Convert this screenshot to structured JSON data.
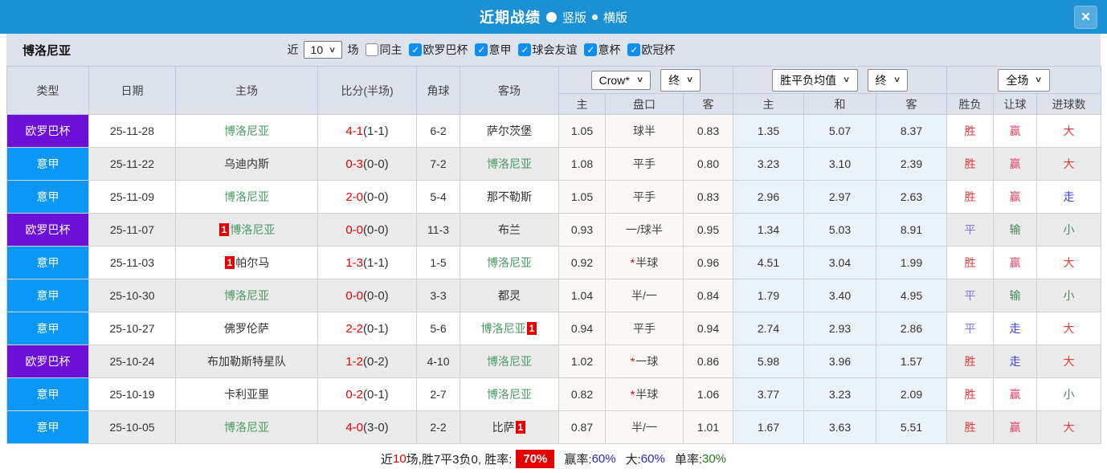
{
  "titlebar": {
    "title": "近期战绩",
    "vertical_label": "竖版",
    "horizontal_label": "横版",
    "close_glyph": "×"
  },
  "filterbar": {
    "team": "博洛尼亚",
    "recent_label": "近",
    "recent_value": "10",
    "matches_label": "场",
    "checkboxes": [
      {
        "label": "同主",
        "checked": false
      },
      {
        "label": "欧罗巴杯",
        "checked": true
      },
      {
        "label": "意甲",
        "checked": true
      },
      {
        "label": "球会友谊",
        "checked": true
      },
      {
        "label": "意杯",
        "checked": true
      },
      {
        "label": "欧冠杯",
        "checked": true
      }
    ]
  },
  "table": {
    "headers": {
      "type": "类型",
      "date": "日期",
      "home": "主场",
      "score": "比分(半场)",
      "corner": "角球",
      "away": "客场"
    },
    "dropdowns": {
      "odds_company": "Crow*",
      "odds_time": "终",
      "avg_type": "胜平负均值",
      "avg_time": "终",
      "scope": "全场"
    },
    "subheaders": [
      "主",
      "盘口",
      "客",
      "主",
      "和",
      "客",
      "胜负",
      "让球",
      "进球数"
    ],
    "rows": [
      {
        "league": "欧罗巴杯",
        "league_color": "purple",
        "date": "25-11-28",
        "home": {
          "name": "博洛尼亚",
          "green": true,
          "badge": ""
        },
        "score": "4-1",
        "half": "(1-1)",
        "corner": "6-2",
        "away": {
          "name": "萨尔茨堡",
          "green": false,
          "badge": ""
        },
        "odds": {
          "home": "1.05",
          "star": false,
          "handicap": "球半",
          "away": "0.83"
        },
        "avg": {
          "home": "1.35",
          "draw": "5.07",
          "away": "8.37"
        },
        "results": [
          {
            "t": "胜",
            "c": "red"
          },
          {
            "t": "赢",
            "c": "pink"
          },
          {
            "t": "大",
            "c": "red"
          }
        ]
      },
      {
        "league": "意甲",
        "league_color": "blue",
        "date": "25-11-22",
        "home": {
          "name": "乌迪内斯",
          "green": false,
          "badge": ""
        },
        "score": "0-3",
        "half": "(0-0)",
        "corner": "7-2",
        "away": {
          "name": "博洛尼亚",
          "green": true,
          "badge": ""
        },
        "odds": {
          "home": "1.08",
          "star": false,
          "handicap": "平手",
          "away": "0.80"
        },
        "avg": {
          "home": "3.23",
          "draw": "3.10",
          "away": "2.39"
        },
        "results": [
          {
            "t": "胜",
            "c": "red"
          },
          {
            "t": "赢",
            "c": "pink"
          },
          {
            "t": "大",
            "c": "red"
          }
        ]
      },
      {
        "league": "意甲",
        "league_color": "blue",
        "date": "25-11-09",
        "home": {
          "name": "博洛尼亚",
          "green": true,
          "badge": ""
        },
        "score": "2-0",
        "half": "(0-0)",
        "corner": "5-4",
        "away": {
          "name": "那不勒斯",
          "green": false,
          "badge": ""
        },
        "odds": {
          "home": "1.05",
          "star": false,
          "handicap": "平手",
          "away": "0.83"
        },
        "avg": {
          "home": "2.96",
          "draw": "2.97",
          "away": "2.63"
        },
        "results": [
          {
            "t": "胜",
            "c": "red"
          },
          {
            "t": "赢",
            "c": "pink"
          },
          {
            "t": "走",
            "c": "blue"
          }
        ]
      },
      {
        "league": "欧罗巴杯",
        "league_color": "purple",
        "date": "25-11-07",
        "home": {
          "name": "博洛尼亚",
          "green": true,
          "badge": "1"
        },
        "score": "0-0",
        "half": "(0-0)",
        "corner": "11-3",
        "away": {
          "name": "布兰",
          "green": false,
          "badge": ""
        },
        "odds": {
          "home": "0.93",
          "star": false,
          "handicap": "一/球半",
          "away": "0.95"
        },
        "avg": {
          "home": "1.34",
          "draw": "5.03",
          "away": "8.91"
        },
        "results": [
          {
            "t": "平",
            "c": "lav"
          },
          {
            "t": "输",
            "c": "green"
          },
          {
            "t": "小",
            "c": "green"
          }
        ]
      },
      {
        "league": "意甲",
        "league_color": "blue",
        "date": "25-11-03",
        "home": {
          "name": "帕尔马",
          "green": false,
          "badge": "1"
        },
        "score": "1-3",
        "half": "(1-1)",
        "corner": "1-5",
        "away": {
          "name": "博洛尼亚",
          "green": true,
          "badge": ""
        },
        "odds": {
          "home": "0.92",
          "star": true,
          "handicap": "半球",
          "away": "0.96"
        },
        "avg": {
          "home": "4.51",
          "draw": "3.04",
          "away": "1.99"
        },
        "results": [
          {
            "t": "胜",
            "c": "red"
          },
          {
            "t": "赢",
            "c": "pink"
          },
          {
            "t": "大",
            "c": "red"
          }
        ]
      },
      {
        "league": "意甲",
        "league_color": "blue",
        "date": "25-10-30",
        "home": {
          "name": "博洛尼亚",
          "green": true,
          "badge": ""
        },
        "score": "0-0",
        "half": "(0-0)",
        "corner": "3-3",
        "away": {
          "name": "都灵",
          "green": false,
          "badge": ""
        },
        "odds": {
          "home": "1.04",
          "star": false,
          "handicap": "半/一",
          "away": "0.84"
        },
        "avg": {
          "home": "1.79",
          "draw": "3.40",
          "away": "4.95"
        },
        "results": [
          {
            "t": "平",
            "c": "lav"
          },
          {
            "t": "输",
            "c": "green"
          },
          {
            "t": "小",
            "c": "green"
          }
        ]
      },
      {
        "league": "意甲",
        "league_color": "blue",
        "date": "25-10-27",
        "home": {
          "name": "佛罗伦萨",
          "green": false,
          "badge": ""
        },
        "score": "2-2",
        "half": "(0-1)",
        "corner": "5-6",
        "away": {
          "name": "博洛尼亚",
          "green": true,
          "badge": "1"
        },
        "odds": {
          "home": "0.94",
          "star": false,
          "handicap": "平手",
          "away": "0.94"
        },
        "avg": {
          "home": "2.74",
          "draw": "2.93",
          "away": "2.86"
        },
        "results": [
          {
            "t": "平",
            "c": "lav"
          },
          {
            "t": "走",
            "c": "blue"
          },
          {
            "t": "大",
            "c": "red"
          }
        ]
      },
      {
        "league": "欧罗巴杯",
        "league_color": "purple",
        "date": "25-10-24",
        "home": {
          "name": "布加勒斯特星队",
          "green": false,
          "badge": ""
        },
        "score": "1-2",
        "half": "(0-2)",
        "corner": "4-10",
        "away": {
          "name": "博洛尼亚",
          "green": true,
          "badge": ""
        },
        "odds": {
          "home": "1.02",
          "star": true,
          "handicap": "一球",
          "away": "0.86"
        },
        "avg": {
          "home": "5.98",
          "draw": "3.96",
          "away": "1.57"
        },
        "results": [
          {
            "t": "胜",
            "c": "red"
          },
          {
            "t": "走",
            "c": "blue"
          },
          {
            "t": "大",
            "c": "red"
          }
        ]
      },
      {
        "league": "意甲",
        "league_color": "blue",
        "date": "25-10-19",
        "home": {
          "name": "卡利亚里",
          "green": false,
          "badge": ""
        },
        "score": "0-2",
        "half": "(0-1)",
        "corner": "2-7",
        "away": {
          "name": "博洛尼亚",
          "green": true,
          "badge": ""
        },
        "odds": {
          "home": "0.82",
          "star": true,
          "handicap": "半球",
          "away": "1.06"
        },
        "avg": {
          "home": "3.77",
          "draw": "3.23",
          "away": "2.09"
        },
        "results": [
          {
            "t": "胜",
            "c": "red"
          },
          {
            "t": "赢",
            "c": "pink"
          },
          {
            "t": "小",
            "c": "green"
          }
        ]
      },
      {
        "league": "意甲",
        "league_color": "blue",
        "date": "25-10-05",
        "home": {
          "name": "博洛尼亚",
          "green": true,
          "badge": ""
        },
        "score": "4-0",
        "half": "(3-0)",
        "corner": "2-2",
        "away": {
          "name": "比萨",
          "green": false,
          "badge": "1"
        },
        "odds": {
          "home": "0.87",
          "star": false,
          "handicap": "半/一",
          "away": "1.01"
        },
        "avg": {
          "home": "1.67",
          "draw": "3.63",
          "away": "5.51"
        },
        "results": [
          {
            "t": "胜",
            "c": "red"
          },
          {
            "t": "赢",
            "c": "pink"
          },
          {
            "t": "大",
            "c": "red"
          }
        ]
      }
    ]
  },
  "footer": {
    "segments": [
      {
        "t": "近",
        "c": "dark",
        "gap": false
      },
      {
        "t": "10",
        "c": "red",
        "gap": false
      },
      {
        "t": "场,胜7平3负0, 胜率:",
        "c": "dark",
        "gap": false
      },
      {
        "t": "70%",
        "c": "box",
        "gap": false
      },
      {
        "t": "赢率:",
        "c": "dark",
        "gap": true
      },
      {
        "t": "60%",
        "c": "blue",
        "gap": false
      },
      {
        "t": "大:",
        "c": "dark",
        "gap": true
      },
      {
        "t": "60%",
        "c": "blue",
        "gap": false
      },
      {
        "t": "单率:",
        "c": "dark",
        "gap": true
      },
      {
        "t": "30%",
        "c": "green",
        "gap": false
      }
    ]
  },
  "colors": {
    "topbar_blue": "#1b90d4",
    "league_purple": "#6c10d8",
    "league_blue": "#0a97f5",
    "score_red": "#e60000",
    "team_green": "#4a9a62",
    "win_red": "#e43b3b",
    "win_pink": "#e2446e",
    "draw_lavender": "#7b74ea",
    "push_blue": "#4444dd",
    "lose_green": "#4d8759"
  }
}
